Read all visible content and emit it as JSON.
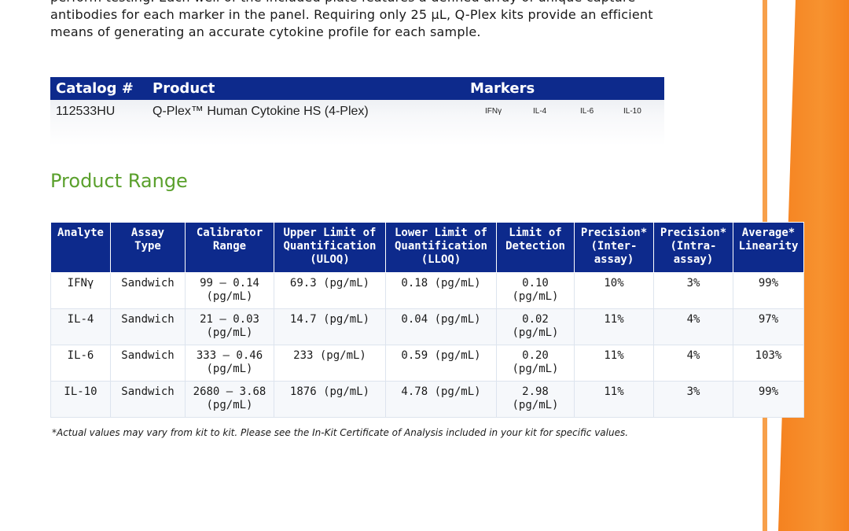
{
  "intro": {
    "line1": "perform testing. Each well of the included plate features a defined array of unique capture",
    "line2": "antibodies for each marker in the panel. Requiring only 25 µL, Q-Plex kits provide an efficient",
    "line3": "means of generating an accurate cytokine profile for each sample."
  },
  "catalog": {
    "headers": {
      "catalog": "Catalog #",
      "product": "Product",
      "markers": "Markers"
    },
    "row": {
      "catalog_no": "112533HU",
      "product": "Q-Plex™ Human Cytokine HS  (4-Plex)",
      "markers": [
        "IFNγ",
        "IL-4",
        "IL-6",
        "IL-10"
      ]
    }
  },
  "section_title": "Product Range",
  "range_table": {
    "headers": [
      [
        "Analyte"
      ],
      [
        "Assay",
        "Type"
      ],
      [
        "Calibrator",
        "Range"
      ],
      [
        "Upper Limit of",
        "Quantification",
        "(ULOQ)"
      ],
      [
        "Lower Limit of",
        "Quantification",
        "(LLOQ)"
      ],
      [
        "Limit of",
        "Detection"
      ],
      [
        "Precision*",
        "(Inter-",
        "assay)"
      ],
      [
        "Precision*",
        "(Intra-",
        "assay)"
      ],
      [
        "Average*",
        "Linearity"
      ]
    ],
    "rows": [
      [
        [
          "IFNγ"
        ],
        [
          "Sandwich"
        ],
        [
          "99 – 0.14",
          "(pg/mL)"
        ],
        [
          "69.3 (pg/mL)"
        ],
        [
          "0.18 (pg/mL)"
        ],
        [
          "0.10",
          "(pg/mL)"
        ],
        [
          "10%"
        ],
        [
          "3%"
        ],
        [
          "99%"
        ]
      ],
      [
        [
          "IL-4"
        ],
        [
          "Sandwich"
        ],
        [
          "21 – 0.03",
          "(pg/mL)"
        ],
        [
          "14.7 (pg/mL)"
        ],
        [
          "0.04 (pg/mL)"
        ],
        [
          "0.02",
          "(pg/mL)"
        ],
        [
          "11%"
        ],
        [
          "4%"
        ],
        [
          "97%"
        ]
      ],
      [
        [
          "IL-6"
        ],
        [
          "Sandwich"
        ],
        [
          "333 – 0.46",
          "(pg/mL)"
        ],
        [
          "233 (pg/mL)"
        ],
        [
          "0.59 (pg/mL)"
        ],
        [
          "0.20",
          "(pg/mL)"
        ],
        [
          "11%"
        ],
        [
          "4%"
        ],
        [
          "103%"
        ]
      ],
      [
        [
          "IL-10"
        ],
        [
          "Sandwich"
        ],
        [
          "2680 – 3.68",
          "(pg/mL)"
        ],
        [
          "1876 (pg/mL)"
        ],
        [
          "4.78 (pg/mL)"
        ],
        [
          "2.98",
          "(pg/mL)"
        ],
        [
          "11%"
        ],
        [
          "3%"
        ],
        [
          "99%"
        ]
      ]
    ]
  },
  "footnote": "*Actual values may vary from kit to kit. Please see the In-Kit Certificate of Analysis included in your kit for specific values.",
  "colors": {
    "header_blue": "#0d2a8c",
    "accent_orange": "#f58220",
    "title_green": "#5aa02c"
  }
}
